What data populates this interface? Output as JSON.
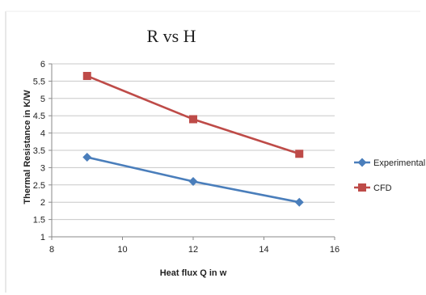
{
  "chart_data": {
    "type": "line",
    "title": "R vs H",
    "xlabel": "Heat flux Q in w",
    "ylabel": "Thermal Resistance in K/W",
    "xlim": [
      8,
      16
    ],
    "ylim": [
      1,
      6
    ],
    "xticks": [
      "8",
      "10",
      "12",
      "14",
      "16"
    ],
    "yticks": [
      "1",
      "1.5",
      "2",
      "2.5",
      "3",
      "3.5",
      "4",
      "4.5",
      "5",
      "5.5",
      "6"
    ],
    "grid": "horizontal",
    "legend_position": "right",
    "series": [
      {
        "name": "Experimental",
        "marker": "diamond",
        "color": "#4a7ebb",
        "x": [
          9,
          12,
          15
        ],
        "y": [
          3.3,
          2.6,
          2.0
        ]
      },
      {
        "name": "CFD",
        "marker": "square",
        "color": "#be4b48",
        "x": [
          9,
          12,
          15
        ],
        "y": [
          5.65,
          4.4,
          3.4
        ]
      }
    ]
  }
}
